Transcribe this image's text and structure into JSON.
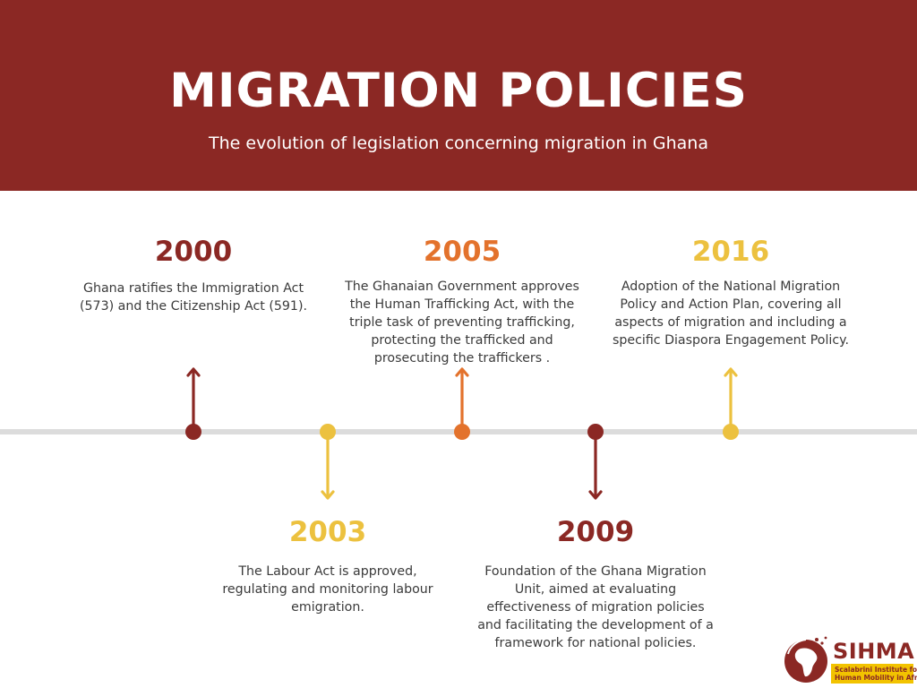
{
  "header": {
    "title": "MIGRATION POLICIES",
    "subtitle": "The evolution of legislation concerning migration in Ghana"
  },
  "colors": {
    "header_bg": "#8b2824",
    "dark_red": "#8b2824",
    "orange": "#e3722c",
    "yellow": "#ecc13f",
    "axis": "#dcdcdc"
  },
  "events": [
    {
      "year": "2000",
      "color": "#8b2824",
      "direction": "up",
      "lines": [
        "Ghana ratifies the Immigration Act",
        "(573) and the Citizenship Act (591)."
      ]
    },
    {
      "year": "2003",
      "color": "#ecc13f",
      "direction": "down",
      "lines": [
        "The Labour Act is approved,",
        "regulating and monitoring labour",
        "emigration."
      ]
    },
    {
      "year": "2005",
      "color": "#e3722c",
      "direction": "up",
      "lines": [
        "The Ghanaian Government approves",
        "the Human Trafficking Act, with the",
        "triple task of preventing trafficking,",
        "protecting the trafficked and",
        "prosecuting the traffickers ."
      ]
    },
    {
      "year": "2009",
      "color": "#8b2824",
      "direction": "down",
      "lines": [
        "Foundation of the Ghana Migration",
        "Unit, aimed at evaluating",
        "effectiveness of migration policies",
        "and facilitating the development of a",
        "framework for national policies."
      ]
    },
    {
      "year": "2016",
      "color": "#ecc13f",
      "direction": "up",
      "lines": [
        "Adoption of the National Migration",
        "Policy and Action Plan, covering all",
        "aspects of migration and including a",
        "specific Diaspora Engagement Policy."
      ]
    }
  ],
  "logo": {
    "name": "SIHMA",
    "line1": "Scalabrini Institute for",
    "line2": "Human Mobility in Africa"
  }
}
